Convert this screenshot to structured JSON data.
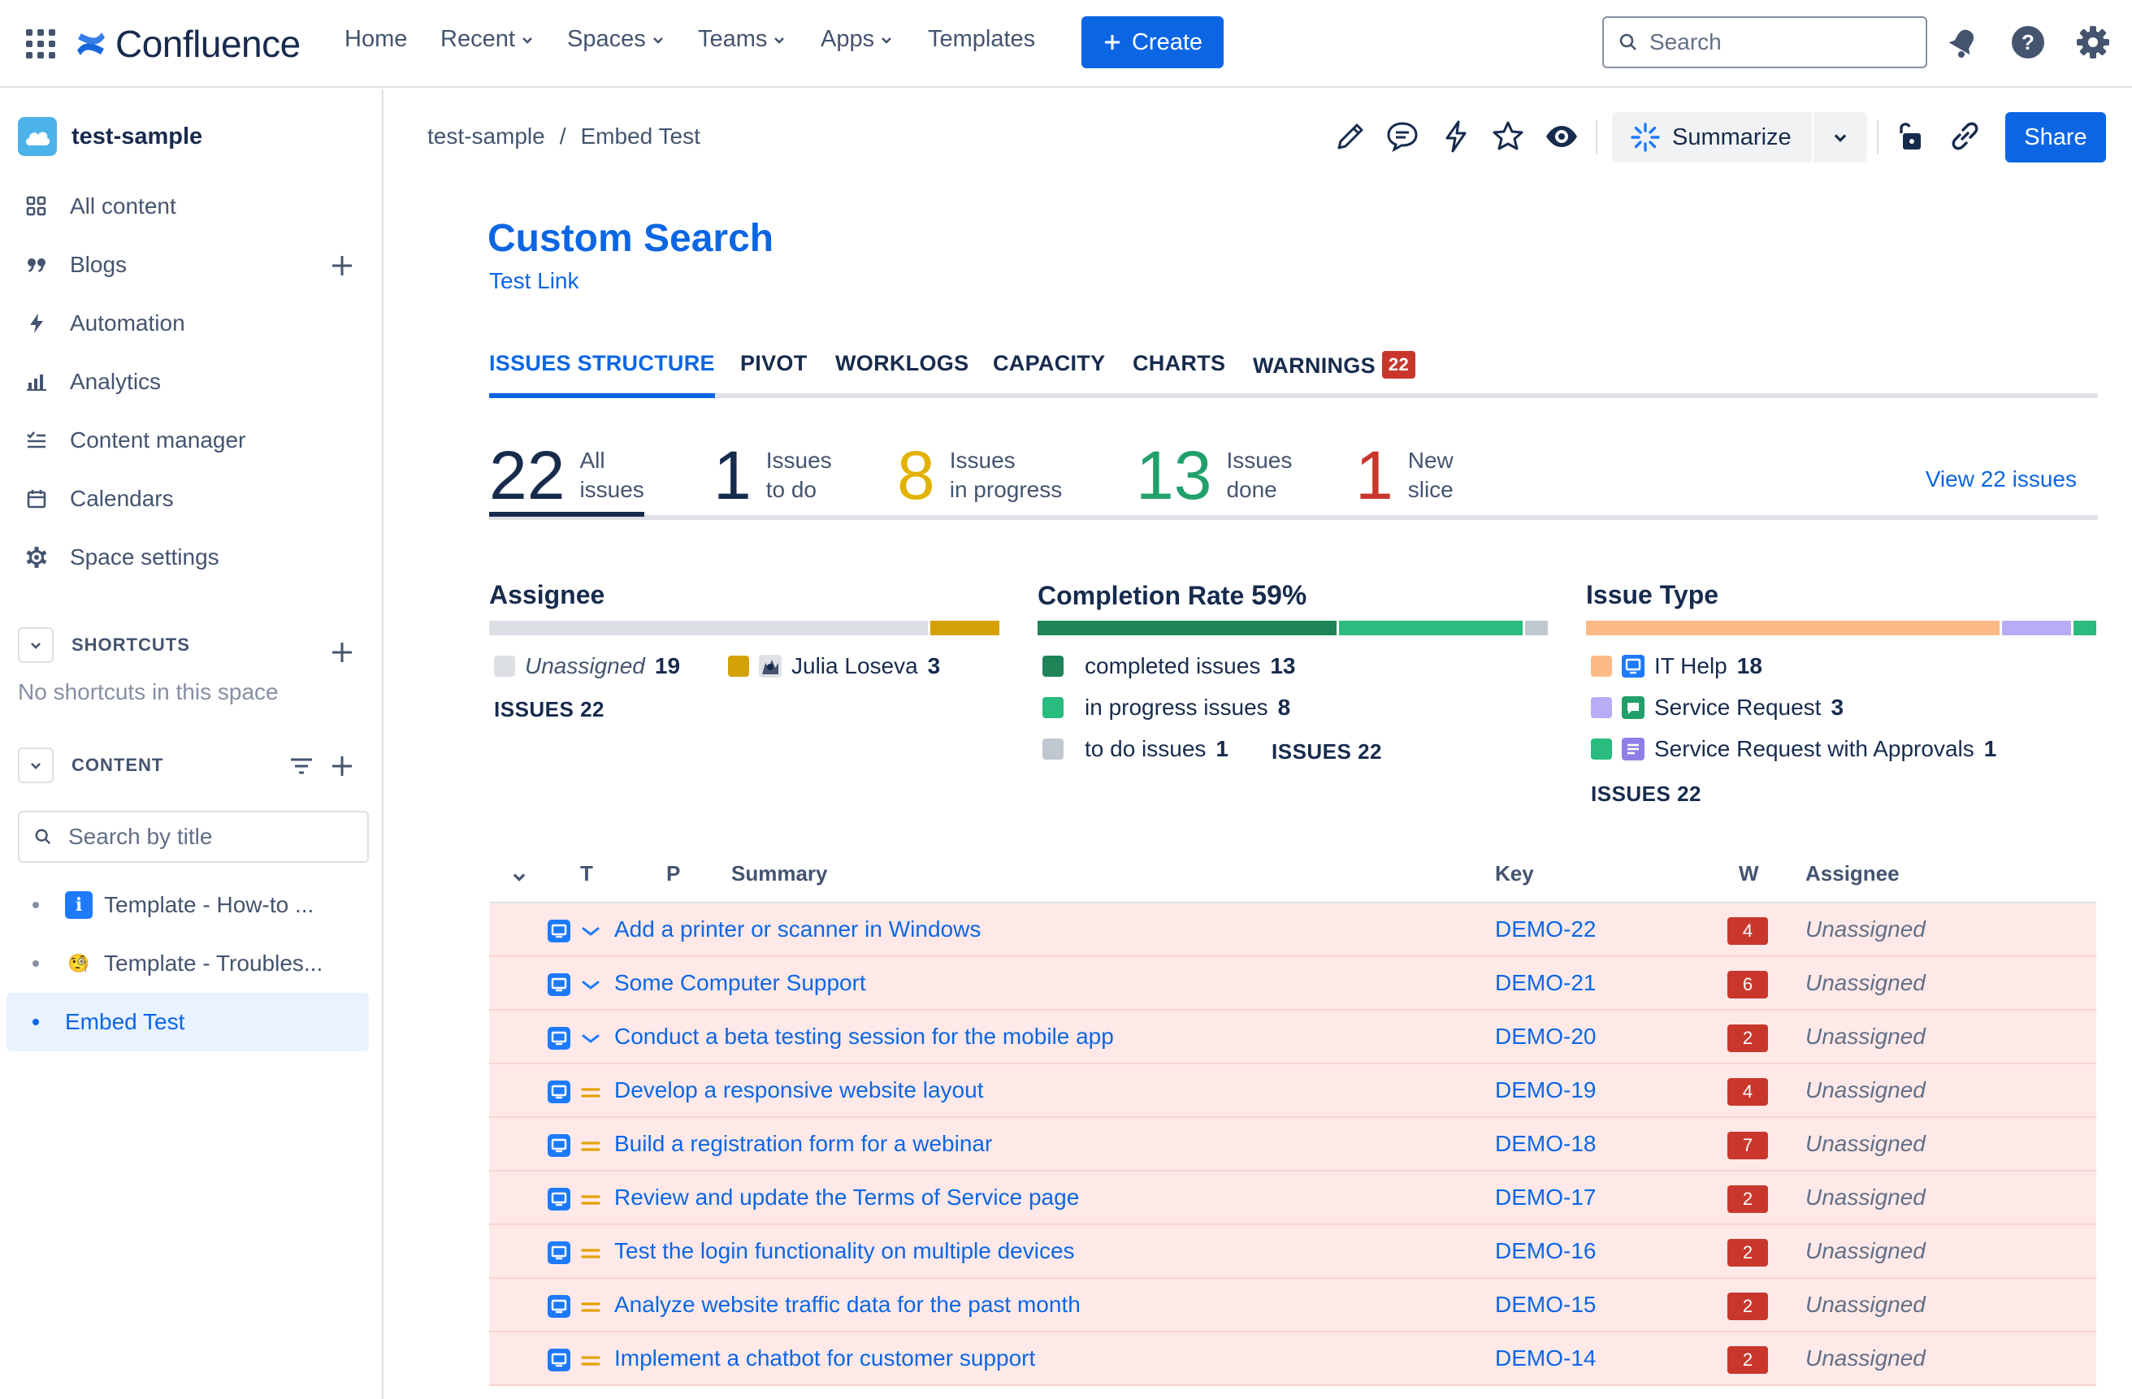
{
  "topnav": {
    "product": "Confluence",
    "items": [
      {
        "label": "Home",
        "dropdown": false
      },
      {
        "label": "Recent",
        "dropdown": true
      },
      {
        "label": "Spaces",
        "dropdown": true
      },
      {
        "label": "Teams",
        "dropdown": true
      },
      {
        "label": "Apps",
        "dropdown": true
      },
      {
        "label": "Templates",
        "dropdown": false
      }
    ],
    "create_label": "Create",
    "search_placeholder": "Search",
    "icons": [
      "notifications-icon",
      "help-icon",
      "settings-icon"
    ]
  },
  "sidebar": {
    "space_name": "test-sample",
    "items": [
      {
        "label": "All content",
        "icon": "grid-icon"
      },
      {
        "label": "Blogs",
        "icon": "quote-icon"
      },
      {
        "label": "Automation",
        "icon": "lightning-icon"
      },
      {
        "label": "Analytics",
        "icon": "bar-chart-icon"
      },
      {
        "label": "Content manager",
        "icon": "checklist-icon"
      },
      {
        "label": "Calendars",
        "icon": "calendar-icon"
      },
      {
        "label": "Space settings",
        "icon": "gear-icon"
      }
    ],
    "shortcuts_label": "SHORTCUTS",
    "shortcuts_empty": "No shortcuts in this space",
    "content_label": "CONTENT",
    "search_placeholder": "Search by title",
    "tree": [
      {
        "label": "Template - How-to ...",
        "emoji": "i",
        "active": false
      },
      {
        "label": "Template - Troubles...",
        "emoji": "🧐",
        "active": false
      },
      {
        "label": "Embed Test",
        "emoji": "",
        "active": true
      }
    ]
  },
  "page": {
    "breadcrumb": [
      "test-sample",
      "Embed Test"
    ],
    "summarize_label": "Summarize",
    "share_label": "Share",
    "title": "Custom Search",
    "link": "Test Link"
  },
  "report": {
    "tabs": [
      {
        "label": "ISSUES STRUCTURE",
        "active": true
      },
      {
        "label": "PIVOT",
        "active": false
      },
      {
        "label": "WORKLOGS",
        "active": false
      },
      {
        "label": "CAPACITY",
        "active": false
      },
      {
        "label": "CHARTS",
        "active": false
      },
      {
        "label": "WARNINGS",
        "active": false,
        "badge": "22"
      }
    ],
    "stats": [
      {
        "num": "22",
        "l1": "All",
        "l2": "issues",
        "color": "#172b4d"
      },
      {
        "num": "1",
        "l1": "Issues",
        "l2": "to do",
        "color": "#172b4d"
      },
      {
        "num": "8",
        "l1": "Issues",
        "l2": "in progress",
        "color": "#e2b203"
      },
      {
        "num": "13",
        "l1": "Issues",
        "l2": "done",
        "color": "#22a06b"
      },
      {
        "num": "1",
        "l1": "New",
        "l2": "slice",
        "color": "#c9372c"
      }
    ],
    "view_link": "View 22 issues",
    "assignee": {
      "title": "Assignee",
      "segments": [
        {
          "label": "Unassigned",
          "count": "19",
          "value": 19,
          "color": "#dcdfe4",
          "italic": true
        },
        {
          "label": "Julia Loseva",
          "count": "3",
          "value": 3,
          "color": "#d4a106",
          "italic": false
        }
      ],
      "total_label": "ISSUES 22"
    },
    "completion": {
      "title": "Completion Rate",
      "rate": "59%",
      "segments": [
        {
          "label": "completed issues",
          "count": "13",
          "value": 13,
          "color": "#1f845a"
        },
        {
          "label": "in progress issues",
          "count": "8",
          "value": 8,
          "color": "#2abb7f"
        },
        {
          "label": "to do issues",
          "count": "1",
          "value": 1,
          "color": "#c1c7d0"
        }
      ],
      "total_label": "ISSUES 22"
    },
    "issue_type": {
      "title": "Issue Type",
      "segments": [
        {
          "label": "IT Help",
          "count": "18",
          "value": 18,
          "color": "#fdba87",
          "icon_color": "#1d7afc"
        },
        {
          "label": "Service Request",
          "count": "3",
          "value": 3,
          "color": "#b8acf6",
          "icon_color": "#22a06b"
        },
        {
          "label": "Service Request with Approvals",
          "count": "1",
          "value": 1,
          "color": "#2abb7f",
          "icon_color": "#8f7ee7"
        }
      ],
      "total_label": "ISSUES 22"
    },
    "table": {
      "headers": {
        "t": "T",
        "p": "P",
        "summary": "Summary",
        "key": "Key",
        "w": "W",
        "assignee": "Assignee"
      },
      "rows": [
        {
          "summary": "Add a printer or scanner in Windows",
          "key": "DEMO-22",
          "w": "4",
          "assignee": "Unassigned",
          "priority": "low"
        },
        {
          "summary": "Some Computer Support",
          "key": "DEMO-21",
          "w": "6",
          "assignee": "Unassigned",
          "priority": "low"
        },
        {
          "summary": "Conduct a beta testing session for the mobile app",
          "key": "DEMO-20",
          "w": "2",
          "assignee": "Unassigned",
          "priority": "low"
        },
        {
          "summary": "Develop a responsive website layout",
          "key": "DEMO-19",
          "w": "4",
          "assignee": "Unassigned",
          "priority": "medium"
        },
        {
          "summary": "Build a registration form for a webinar",
          "key": "DEMO-18",
          "w": "7",
          "assignee": "Unassigned",
          "priority": "medium"
        },
        {
          "summary": "Review and update the Terms of Service page",
          "key": "DEMO-17",
          "w": "2",
          "assignee": "Unassigned",
          "priority": "medium"
        },
        {
          "summary": "Test the login functionality on multiple devices",
          "key": "DEMO-16",
          "w": "2",
          "assignee": "Unassigned",
          "priority": "medium"
        },
        {
          "summary": "Analyze website traffic data for the past month",
          "key": "DEMO-15",
          "w": "2",
          "assignee": "Unassigned",
          "priority": "medium"
        },
        {
          "summary": "Implement a chatbot for customer support",
          "key": "DEMO-14",
          "w": "2",
          "assignee": "Unassigned",
          "priority": "medium"
        }
      ]
    }
  }
}
